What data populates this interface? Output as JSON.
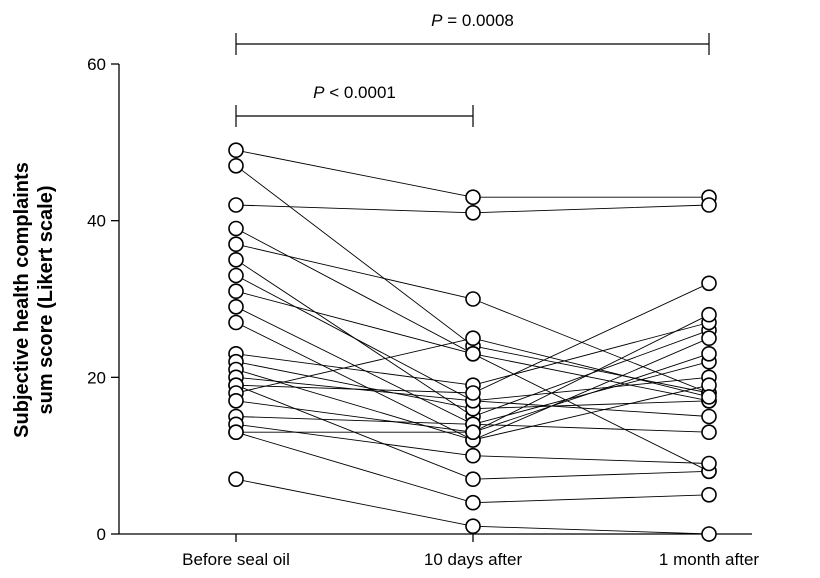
{
  "chart_data": {
    "type": "scatter",
    "subtype": "paired-dot-plot",
    "ylabel_lines": [
      "Subjective health complaints",
      "sum score (Likert scale)"
    ],
    "categories": [
      "Before seal oil",
      "10 days after",
      "1 month after"
    ],
    "ylim": [
      0,
      60
    ],
    "yticks": [
      0,
      20,
      40,
      60
    ],
    "grid": false,
    "series": [
      {
        "values": [
          49,
          43,
          43
        ]
      },
      {
        "values": [
          47,
          24,
          18
        ]
      },
      {
        "values": [
          42,
          41,
          42
        ]
      },
      {
        "values": [
          39,
          23,
          17
        ]
      },
      {
        "values": [
          37,
          30,
          18
        ]
      },
      {
        "values": [
          35,
          15,
          26
        ]
      },
      {
        "values": [
          33,
          17,
          20
        ]
      },
      {
        "values": [
          31,
          23,
          8
        ]
      },
      {
        "values": [
          29,
          14,
          22
        ]
      },
      {
        "values": [
          27,
          12,
          19
        ]
      },
      {
        "values": [
          23,
          19,
          27
        ]
      },
      {
        "values": [
          22,
          16,
          17
        ]
      },
      {
        "values": [
          21,
          12,
          25
        ]
      },
      {
        "values": [
          20,
          17,
          15
        ]
      },
      {
        "values": [
          19,
          7,
          8
        ]
      },
      {
        "values": [
          19,
          18,
          32
        ]
      },
      {
        "values": [
          18,
          25,
          17.5
        ]
      },
      {
        "values": [
          17,
          13,
          28
        ]
      },
      {
        "values": [
          15,
          14,
          13
        ]
      },
      {
        "values": [
          14,
          10,
          9
        ]
      },
      {
        "values": [
          13,
          4,
          5
        ]
      },
      {
        "values": [
          13,
          13,
          23
        ]
      },
      {
        "values": [
          7,
          1,
          0
        ]
      }
    ],
    "annotations": [
      {
        "from": "Before seal oil",
        "to": "10 days after",
        "label_prefix": "P",
        "label_rest": " < 0.0001"
      },
      {
        "from": "Before seal oil",
        "to": "1 month after",
        "label_prefix": "P",
        "label_rest": " = 0.0008"
      }
    ]
  }
}
